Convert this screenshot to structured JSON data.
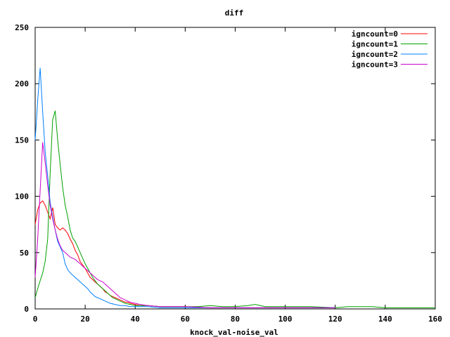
{
  "chart_data": {
    "type": "line",
    "title": "diff",
    "xlabel": "knock_val-noise_val",
    "ylabel": "",
    "xlim": [
      0,
      160
    ],
    "ylim": [
      0,
      250
    ],
    "x_ticks": [
      0,
      20,
      40,
      60,
      80,
      100,
      120,
      140,
      160
    ],
    "y_ticks": [
      0,
      50,
      100,
      150,
      200,
      250
    ],
    "grid": false,
    "legend": "top-right",
    "series": [
      {
        "name": "igncount=0",
        "color": "#ff0000",
        "points": [
          [
            0,
            75
          ],
          [
            1,
            88
          ],
          [
            2,
            94
          ],
          [
            3,
            96
          ],
          [
            4,
            92
          ],
          [
            5,
            86
          ],
          [
            6,
            80
          ],
          [
            7,
            90
          ],
          [
            8,
            75
          ],
          [
            9,
            72
          ],
          [
            10,
            70
          ],
          [
            11,
            72
          ],
          [
            12,
            70
          ],
          [
            13,
            67
          ],
          [
            14,
            62
          ],
          [
            15,
            58
          ],
          [
            16,
            52
          ],
          [
            17,
            48
          ],
          [
            18,
            42
          ],
          [
            19,
            39
          ],
          [
            20,
            36
          ],
          [
            21,
            32
          ],
          [
            22,
            28
          ],
          [
            23,
            26
          ],
          [
            24,
            24
          ],
          [
            25,
            22
          ],
          [
            26,
            20
          ],
          [
            27,
            18
          ],
          [
            28,
            15
          ],
          [
            29,
            14
          ],
          [
            30,
            12
          ],
          [
            31,
            11
          ],
          [
            32,
            10
          ],
          [
            33,
            9
          ],
          [
            34,
            8
          ],
          [
            35,
            7
          ],
          [
            36,
            6
          ],
          [
            37,
            6
          ],
          [
            38,
            5
          ],
          [
            40,
            4
          ],
          [
            42,
            3
          ],
          [
            45,
            3
          ],
          [
            50,
            2
          ],
          [
            55,
            2
          ],
          [
            60,
            2
          ],
          [
            70,
            1
          ],
          [
            80,
            1
          ],
          [
            90,
            1
          ],
          [
            100,
            1
          ],
          [
            110,
            1
          ],
          [
            120,
            1
          ]
        ]
      },
      {
        "name": "igncount=1",
        "color": "#00a000",
        "points": [
          [
            0,
            10
          ],
          [
            1,
            18
          ],
          [
            2,
            25
          ],
          [
            3,
            32
          ],
          [
            4,
            42
          ],
          [
            5,
            62
          ],
          [
            6,
            120
          ],
          [
            7,
            168
          ],
          [
            8,
            176
          ],
          [
            9,
            150
          ],
          [
            10,
            128
          ],
          [
            11,
            108
          ],
          [
            12,
            92
          ],
          [
            13,
            82
          ],
          [
            14,
            70
          ],
          [
            15,
            63
          ],
          [
            16,
            60
          ],
          [
            17,
            55
          ],
          [
            18,
            50
          ],
          [
            19,
            45
          ],
          [
            20,
            40
          ],
          [
            21,
            36
          ],
          [
            22,
            32
          ],
          [
            23,
            28
          ],
          [
            24,
            25
          ],
          [
            25,
            22
          ],
          [
            26,
            20
          ],
          [
            27,
            18
          ],
          [
            28,
            16
          ],
          [
            29,
            14
          ],
          [
            30,
            12
          ],
          [
            31,
            10
          ],
          [
            32,
            9
          ],
          [
            33,
            8
          ],
          [
            34,
            7
          ],
          [
            35,
            6
          ],
          [
            36,
            5
          ],
          [
            38,
            4
          ],
          [
            40,
            3
          ],
          [
            45,
            3
          ],
          [
            50,
            2
          ],
          [
            55,
            2
          ],
          [
            60,
            2
          ],
          [
            65,
            2
          ],
          [
            70,
            3
          ],
          [
            75,
            2
          ],
          [
            80,
            2
          ],
          [
            85,
            3
          ],
          [
            88,
            4
          ],
          [
            92,
            2
          ],
          [
            100,
            2
          ],
          [
            110,
            2
          ],
          [
            120,
            1
          ],
          [
            125,
            2
          ],
          [
            130,
            2
          ],
          [
            135,
            2
          ],
          [
            140,
            1
          ],
          [
            150,
            1
          ],
          [
            160,
            1
          ]
        ]
      },
      {
        "name": "igncount=2",
        "color": "#0080ff",
        "points": [
          [
            0,
            150
          ],
          [
            1,
            185
          ],
          [
            2,
            214
          ],
          [
            3,
            175
          ],
          [
            4,
            140
          ],
          [
            5,
            118
          ],
          [
            6,
            95
          ],
          [
            7,
            82
          ],
          [
            8,
            70
          ],
          [
            9,
            60
          ],
          [
            10,
            55
          ],
          [
            11,
            50
          ],
          [
            12,
            40
          ],
          [
            13,
            35
          ],
          [
            14,
            32
          ],
          [
            15,
            30
          ],
          [
            16,
            28
          ],
          [
            17,
            26
          ],
          [
            18,
            24
          ],
          [
            19,
            22
          ],
          [
            20,
            20
          ],
          [
            21,
            18
          ],
          [
            22,
            15
          ],
          [
            23,
            13
          ],
          [
            24,
            11
          ],
          [
            25,
            10
          ],
          [
            26,
            9
          ],
          [
            27,
            8
          ],
          [
            28,
            7
          ],
          [
            29,
            6
          ],
          [
            30,
            5
          ],
          [
            32,
            4
          ],
          [
            34,
            3
          ],
          [
            36,
            3
          ],
          [
            38,
            2
          ],
          [
            40,
            2
          ],
          [
            45,
            2
          ],
          [
            50,
            1
          ],
          [
            60,
            1
          ],
          [
            70,
            1
          ],
          [
            80,
            1
          ],
          [
            90,
            1
          ],
          [
            100,
            1
          ],
          [
            110,
            1
          ],
          [
            120,
            1
          ]
        ]
      },
      {
        "name": "igncount=3",
        "color": "#cc00cc",
        "points": [
          [
            0,
            28
          ],
          [
            1,
            62
          ],
          [
            2,
            105
          ],
          [
            3,
            148
          ],
          [
            4,
            130
          ],
          [
            5,
            110
          ],
          [
            6,
            92
          ],
          [
            7,
            80
          ],
          [
            8,
            70
          ],
          [
            9,
            62
          ],
          [
            10,
            56
          ],
          [
            11,
            52
          ],
          [
            12,
            50
          ],
          [
            13,
            48
          ],
          [
            14,
            46
          ],
          [
            15,
            45
          ],
          [
            16,
            44
          ],
          [
            17,
            42
          ],
          [
            18,
            40
          ],
          [
            19,
            38
          ],
          [
            20,
            36
          ],
          [
            21,
            34
          ],
          [
            22,
            32
          ],
          [
            23,
            30
          ],
          [
            24,
            28
          ],
          [
            25,
            26
          ],
          [
            26,
            25
          ],
          [
            27,
            24
          ],
          [
            28,
            22
          ],
          [
            29,
            20
          ],
          [
            30,
            18
          ],
          [
            31,
            16
          ],
          [
            32,
            14
          ],
          [
            33,
            12
          ],
          [
            34,
            10
          ],
          [
            35,
            9
          ],
          [
            36,
            8
          ],
          [
            37,
            7
          ],
          [
            38,
            6
          ],
          [
            40,
            5
          ],
          [
            42,
            4
          ],
          [
            45,
            3
          ],
          [
            50,
            2
          ],
          [
            55,
            2
          ],
          [
            60,
            2
          ],
          [
            70,
            1
          ],
          [
            80,
            1
          ],
          [
            90,
            1
          ],
          [
            100,
            1
          ],
          [
            110,
            1
          ],
          [
            120,
            1
          ]
        ]
      }
    ]
  }
}
